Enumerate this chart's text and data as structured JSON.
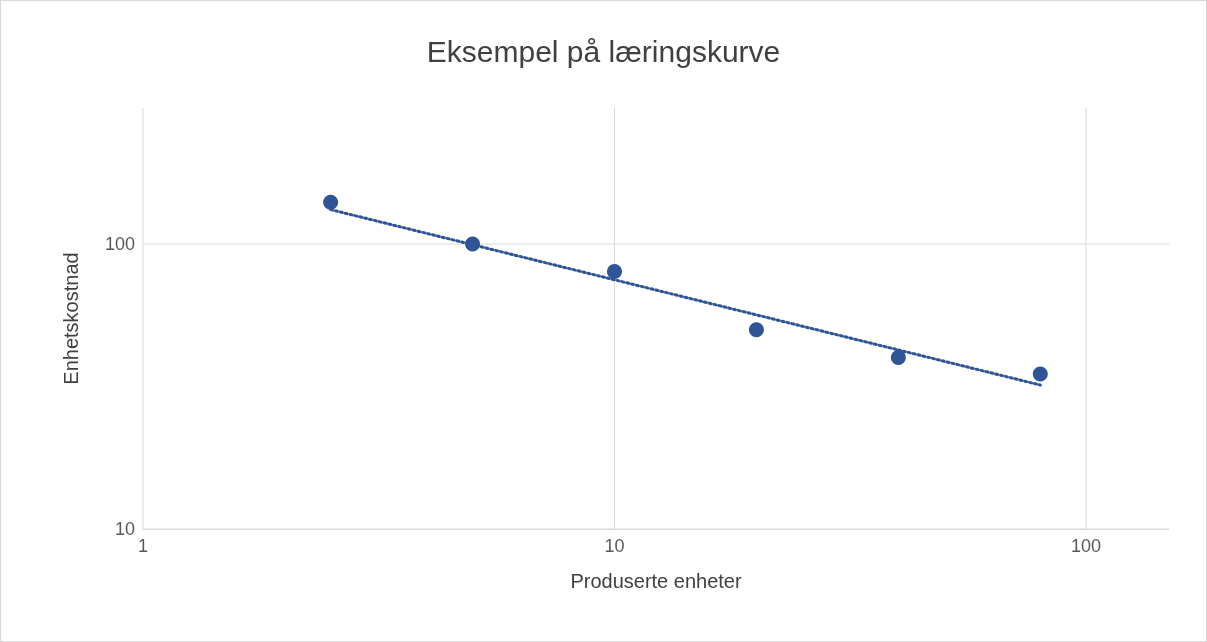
{
  "chart_data": {
    "type": "scatter",
    "title": "Eksempel på læringskurve",
    "xlabel": "Produserte enheter",
    "ylabel": "Enhetskostnad",
    "log": "xy",
    "x": [
      2.5,
      5,
      10,
      20,
      40,
      80
    ],
    "series": [
      {
        "color": "#2f5597",
        "values": [
          140,
          100,
          80,
          50,
          40,
          35
        ]
      },
      {
        "type": "line",
        "color": "#2f5597",
        "line_style": "dotted",
        "marker": "none",
        "x": [
          2.5,
          80
        ],
        "values": [
          132,
          32
        ]
      }
    ],
    "xlim": [
      1,
      150
    ],
    "xticks": [
      1,
      10,
      100
    ],
    "ylim": [
      10,
      300
    ],
    "yticks": [
      10,
      100
    ],
    "grid": true,
    "marker": "circle"
  }
}
